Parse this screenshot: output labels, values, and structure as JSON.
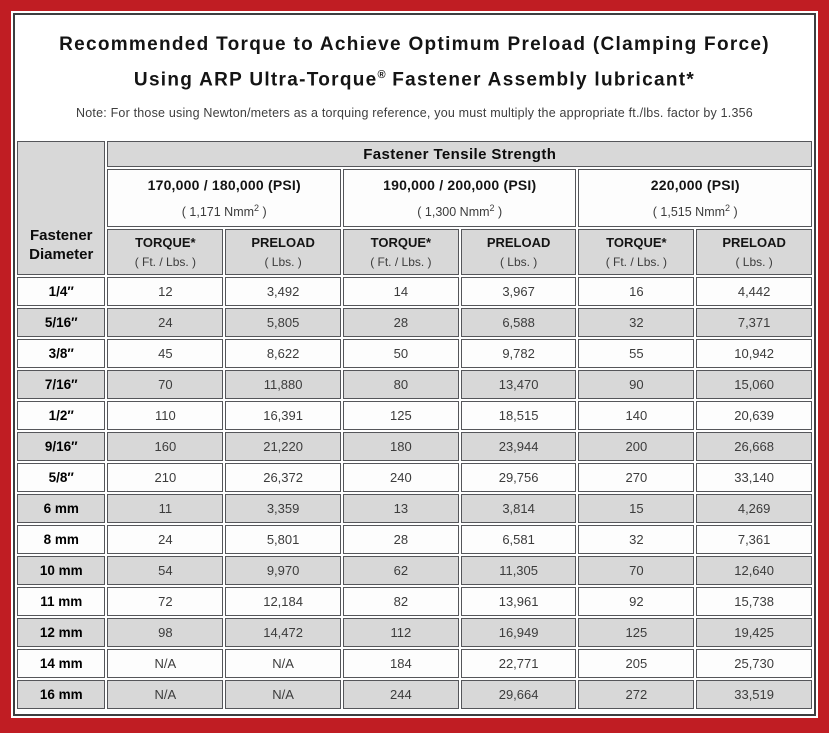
{
  "colors": {
    "frame_red": "#c01d23",
    "border_dark": "#3d3e40",
    "cell_gray": "#d8d8d8",
    "cell_white": "#fdfdfd",
    "cell_border": "#55565a"
  },
  "title": {
    "line1": "Recommended Torque to Achieve Optimum Preload (Clamping Force)",
    "line2_before_reg": "Using ARP Ultra-Torque",
    "registered_mark": "®",
    "line2_after_reg": " Fastener Assembly lubricant*",
    "note": "Note: For those using Newton/meters as a torquing reference, you must multiply the appropriate ft./lbs. factor by 1.356"
  },
  "table": {
    "corner_header_line1": "Fastener",
    "corner_header_line2": "Diameter",
    "main_header": "Fastener Tensile Strength",
    "groups": [
      {
        "psi": "170,000 / 180,000 (PSI)",
        "nmm_before_sup": "( 1,171 Nmm",
        "nmm_sup": "2",
        "nmm_after_sup": " )"
      },
      {
        "psi": "190,000 / 200,000 (PSI)",
        "nmm_before_sup": "( 1,300 Nmm",
        "nmm_sup": "2",
        "nmm_after_sup": " )"
      },
      {
        "psi": "220,000 (PSI)",
        "nmm_before_sup": "( 1,515 Nmm",
        "nmm_sup": "2",
        "nmm_after_sup": " )"
      }
    ],
    "sub_headers": {
      "torque_label": "TORQUE*",
      "torque_unit": "( Ft. / Lbs. )",
      "preload_label": "PRELOAD",
      "preload_unit": "( Lbs. )"
    },
    "rows": [
      {
        "diameter": "1/4″",
        "values": [
          "12",
          "3,492",
          "14",
          "3,967",
          "16",
          "4,442"
        ]
      },
      {
        "diameter": "5/16″",
        "values": [
          "24",
          "5,805",
          "28",
          "6,588",
          "32",
          "7,371"
        ]
      },
      {
        "diameter": "3/8″",
        "values": [
          "45",
          "8,622",
          "50",
          "9,782",
          "55",
          "10,942"
        ]
      },
      {
        "diameter": "7/16″",
        "values": [
          "70",
          "11,880",
          "80",
          "13,470",
          "90",
          "15,060"
        ]
      },
      {
        "diameter": "1/2″",
        "values": [
          "110",
          "16,391",
          "125",
          "18,515",
          "140",
          "20,639"
        ]
      },
      {
        "diameter": "9/16″",
        "values": [
          "160",
          "21,220",
          "180",
          "23,944",
          "200",
          "26,668"
        ]
      },
      {
        "diameter": "5/8″",
        "values": [
          "210",
          "26,372",
          "240",
          "29,756",
          "270",
          "33,140"
        ]
      },
      {
        "diameter": "6 mm",
        "values": [
          "11",
          "3,359",
          "13",
          "3,814",
          "15",
          "4,269"
        ]
      },
      {
        "diameter": "8 mm",
        "values": [
          "24",
          "5,801",
          "28",
          "6,581",
          "32",
          "7,361"
        ]
      },
      {
        "diameter": "10 mm",
        "values": [
          "54",
          "9,970",
          "62",
          "11,305",
          "70",
          "12,640"
        ]
      },
      {
        "diameter": "11 mm",
        "values": [
          "72",
          "12,184",
          "82",
          "13,961",
          "92",
          "15,738"
        ]
      },
      {
        "diameter": "12 mm",
        "values": [
          "98",
          "14,472",
          "112",
          "16,949",
          "125",
          "19,425"
        ]
      },
      {
        "diameter": "14 mm",
        "values": [
          "N/A",
          "N/A",
          "184",
          "22,771",
          "205",
          "25,730"
        ]
      },
      {
        "diameter": "16 mm",
        "values": [
          "N/A",
          "N/A",
          "244",
          "29,664",
          "272",
          "33,519"
        ]
      }
    ]
  }
}
